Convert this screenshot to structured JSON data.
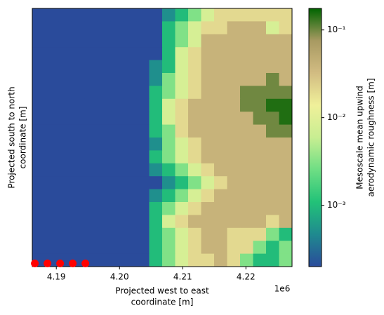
{
  "chart_data": {
    "type": "heatmap",
    "xlabel": [
      "Projected west to east",
      "coordinate [m]"
    ],
    "ylabel": [
      "Projected south to north",
      "coordinate [m]"
    ],
    "x_offset_label": "1e6",
    "xlim": [
      4186200,
      4227300
    ],
    "ylim": [
      0,
      41000
    ],
    "xticks": [
      {
        "value": 4190000,
        "label": "4.19"
      },
      {
        "value": 4200000,
        "label": "4.20"
      },
      {
        "value": 4210000,
        "label": "4.21"
      },
      {
        "value": 4220000,
        "label": "4.22"
      }
    ],
    "colorbar": {
      "label": [
        "Mesoscale mean upwind",
        "aerodynamic roughness [m]"
      ],
      "log": true,
      "lim": [
        0.0002,
        0.176
      ],
      "ticks": [
        {
          "value": 0.001,
          "label": "10⁻³"
        },
        {
          "value": 0.01,
          "label": "10⁻²"
        },
        {
          "value": 0.1,
          "label": "10⁻¹"
        }
      ]
    },
    "colormap": [
      "#2a4b9b",
      "#1f8a8f",
      "#22c278",
      "#6ede84",
      "#c8ee92",
      "#f0f09a",
      "#d2bc82",
      "#a89a62",
      "#006400"
    ],
    "z": [
      [
        0.0002,
        0.0002,
        0.0002,
        0.0002,
        0.0002,
        0.0002,
        0.0002,
        0.0002,
        0.0002,
        0.0002,
        0.0005,
        0.001,
        0.003,
        0.008,
        0.02,
        0.02,
        0.02,
        0.02,
        0.02,
        0.02
      ],
      [
        0.0002,
        0.0002,
        0.0002,
        0.0002,
        0.0002,
        0.0002,
        0.0002,
        0.0002,
        0.0002,
        0.0002,
        0.001,
        0.003,
        0.008,
        0.02,
        0.02,
        0.04,
        0.04,
        0.04,
        0.008,
        0.02
      ],
      [
        0.0002,
        0.0002,
        0.0002,
        0.0002,
        0.0002,
        0.0002,
        0.0002,
        0.0002,
        0.0002,
        0.0002,
        0.001,
        0.003,
        0.008,
        0.04,
        0.04,
        0.04,
        0.04,
        0.04,
        0.04,
        0.04
      ],
      [
        0.0002,
        0.0002,
        0.0002,
        0.0002,
        0.0002,
        0.0002,
        0.0002,
        0.0002,
        0.0002,
        0.0002,
        0.001,
        0.008,
        0.02,
        0.04,
        0.04,
        0.04,
        0.04,
        0.04,
        0.04,
        0.04
      ],
      [
        0.0002,
        0.0002,
        0.0002,
        0.0002,
        0.0002,
        0.0002,
        0.0002,
        0.0002,
        0.0002,
        0.0005,
        0.001,
        0.008,
        0.02,
        0.04,
        0.04,
        0.04,
        0.04,
        0.04,
        0.04,
        0.04
      ],
      [
        0.0002,
        0.0002,
        0.0002,
        0.0002,
        0.0002,
        0.0002,
        0.0002,
        0.0002,
        0.0002,
        0.0005,
        0.003,
        0.008,
        0.02,
        0.04,
        0.04,
        0.04,
        0.04,
        0.04,
        0.1,
        0.04
      ],
      [
        0.0002,
        0.0002,
        0.0002,
        0.0002,
        0.0002,
        0.0002,
        0.0002,
        0.0002,
        0.0002,
        0.001,
        0.003,
        0.008,
        0.02,
        0.04,
        0.04,
        0.04,
        0.1,
        0.1,
        0.1,
        0.1
      ],
      [
        0.0002,
        0.0002,
        0.0002,
        0.0002,
        0.0002,
        0.0002,
        0.0002,
        0.0002,
        0.0002,
        0.001,
        0.008,
        0.02,
        0.04,
        0.04,
        0.04,
        0.04,
        0.1,
        0.1,
        0.15,
        0.15
      ],
      [
        0.0002,
        0.0002,
        0.0002,
        0.0002,
        0.0002,
        0.0002,
        0.0002,
        0.0002,
        0.0002,
        0.001,
        0.008,
        0.02,
        0.04,
        0.04,
        0.04,
        0.04,
        0.04,
        0.1,
        0.1,
        0.15
      ],
      [
        0.0002,
        0.0002,
        0.0002,
        0.0002,
        0.0002,
        0.0002,
        0.0002,
        0.0002,
        0.0002,
        0.001,
        0.003,
        0.02,
        0.04,
        0.04,
        0.04,
        0.04,
        0.04,
        0.04,
        0.1,
        0.1
      ],
      [
        0.0002,
        0.0002,
        0.0002,
        0.0002,
        0.0002,
        0.0002,
        0.0002,
        0.0002,
        0.0002,
        0.0005,
        0.003,
        0.008,
        0.02,
        0.04,
        0.04,
        0.04,
        0.04,
        0.04,
        0.04,
        0.04
      ],
      [
        0.0002,
        0.0002,
        0.0002,
        0.0002,
        0.0002,
        0.0002,
        0.0002,
        0.0002,
        0.0002,
        0.001,
        0.003,
        0.008,
        0.02,
        0.04,
        0.04,
        0.04,
        0.04,
        0.04,
        0.04,
        0.04
      ],
      [
        0.0002,
        0.0002,
        0.0002,
        0.0002,
        0.0002,
        0.0002,
        0.0002,
        0.0002,
        0.0002,
        0.0005,
        0.001,
        0.003,
        0.008,
        0.02,
        0.04,
        0.04,
        0.04,
        0.04,
        0.04,
        0.04
      ],
      [
        0.0002,
        0.0002,
        0.0002,
        0.0002,
        0.0002,
        0.0002,
        0.0002,
        0.0002,
        0.0002,
        0.0002,
        0.0005,
        0.001,
        0.003,
        0.008,
        0.02,
        0.04,
        0.04,
        0.04,
        0.04,
        0.04
      ],
      [
        0.0002,
        0.0002,
        0.0002,
        0.0002,
        0.0002,
        0.0002,
        0.0002,
        0.0002,
        0.0002,
        0.0005,
        0.001,
        0.003,
        0.008,
        0.02,
        0.04,
        0.04,
        0.04,
        0.04,
        0.04,
        0.04
      ],
      [
        0.0002,
        0.0002,
        0.0002,
        0.0002,
        0.0002,
        0.0002,
        0.0002,
        0.0002,
        0.0002,
        0.001,
        0.003,
        0.008,
        0.02,
        0.04,
        0.04,
        0.04,
        0.04,
        0.04,
        0.04,
        0.04
      ],
      [
        0.0002,
        0.0002,
        0.0002,
        0.0002,
        0.0002,
        0.0002,
        0.0002,
        0.0002,
        0.0002,
        0.001,
        0.008,
        0.02,
        0.04,
        0.04,
        0.04,
        0.04,
        0.04,
        0.04,
        0.02,
        0.04
      ],
      [
        0.0002,
        0.0002,
        0.0002,
        0.0002,
        0.0002,
        0.0002,
        0.0002,
        0.0002,
        0.0002,
        0.001,
        0.003,
        0.008,
        0.02,
        0.04,
        0.04,
        0.02,
        0.02,
        0.02,
        0.003,
        0.001
      ],
      [
        0.0002,
        0.0002,
        0.0002,
        0.0002,
        0.0002,
        0.0002,
        0.0002,
        0.0002,
        0.0002,
        0.001,
        0.003,
        0.008,
        0.02,
        0.04,
        0.04,
        0.02,
        0.02,
        0.003,
        0.001,
        0.003
      ],
      [
        0.0002,
        0.0002,
        0.0002,
        0.0002,
        0.0002,
        0.0002,
        0.0002,
        0.0002,
        0.0002,
        0.001,
        0.003,
        0.008,
        0.02,
        0.02,
        0.04,
        0.02,
        0.003,
        0.001,
        0.001,
        0.003
      ]
    ],
    "points": {
      "color": "#ff0000",
      "x": [
        4186600,
        4188600,
        4190600,
        4192600,
        4194600
      ],
      "y": [
        500,
        500,
        500,
        500,
        500
      ]
    }
  }
}
